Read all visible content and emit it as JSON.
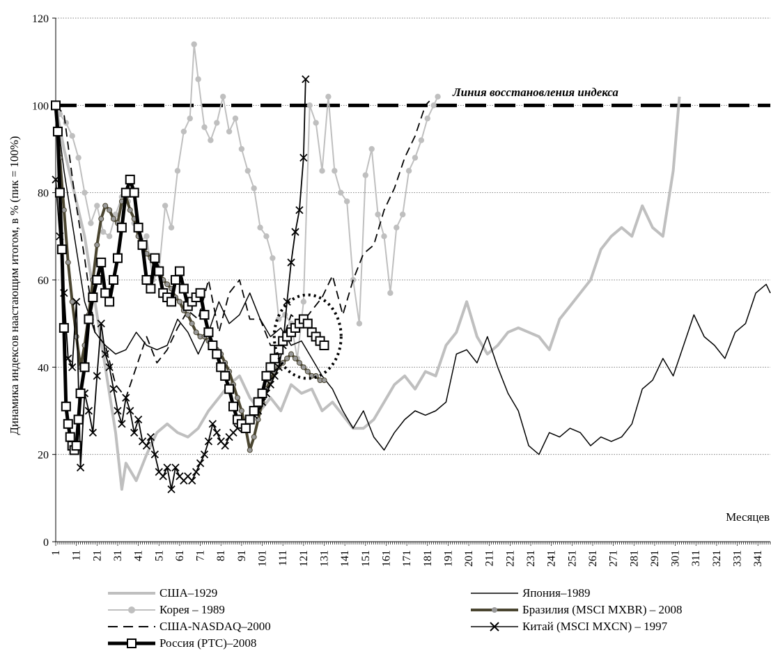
{
  "chart_data": {
    "type": "line",
    "title": "",
    "xlabel": "Месяцев",
    "ylabel": "Динамика  индексов наастающим итогом, в % (пик = 100%)",
    "ylim": [
      0,
      120
    ],
    "xlim": [
      1,
      347
    ],
    "yticks": [
      0,
      20,
      40,
      60,
      80,
      100,
      120
    ],
    "xticks": [
      1,
      11,
      21,
      31,
      41,
      51,
      61,
      71,
      81,
      91,
      101,
      111,
      121,
      131,
      141,
      151,
      161,
      171,
      181,
      191,
      201,
      211,
      221,
      231,
      241,
      251,
      261,
      271,
      281,
      291,
      301,
      311,
      321,
      331,
      341
    ],
    "grid": "horizontal dotted",
    "annotation": "Линия восстановления индекса",
    "recovery_line": 100,
    "legend_position": "bottom",
    "series": [
      {
        "name": "США–1929",
        "color": "#bfbfbf",
        "style": "thick",
        "x": [
          1,
          5,
          10,
          15,
          20,
          25,
          30,
          33,
          35,
          40,
          45,
          50,
          55,
          60,
          65,
          70,
          75,
          80,
          85,
          90,
          95,
          100,
          105,
          110,
          115,
          120,
          125,
          130,
          135,
          140,
          145,
          150,
          155,
          160,
          165,
          170,
          175,
          180,
          185,
          190,
          195,
          200,
          205,
          210,
          215,
          220,
          225,
          230,
          235,
          240,
          245,
          250,
          255,
          260,
          265,
          270,
          275,
          280,
          285,
          290,
          295,
          300,
          303
        ],
        "values": [
          100,
          90,
          80,
          70,
          55,
          40,
          25,
          12,
          18,
          14,
          20,
          25,
          27,
          25,
          24,
          26,
          30,
          33,
          36,
          38,
          33,
          30,
          33,
          30,
          36,
          34,
          35,
          30,
          32,
          29,
          26,
          26,
          28,
          32,
          36,
          38,
          35,
          39,
          38,
          45,
          48,
          55,
          47,
          43,
          45,
          48,
          49,
          48,
          47,
          44,
          51,
          54,
          57,
          60,
          67,
          70,
          72,
          70,
          77,
          72,
          70,
          85,
          102
        ]
      },
      {
        "name": "Япония–1989",
        "color": "#000000",
        "style": "thin",
        "x": [
          1,
          5,
          10,
          15,
          20,
          25,
          30,
          35,
          40,
          45,
          50,
          55,
          60,
          65,
          70,
          75,
          80,
          85,
          90,
          95,
          100,
          105,
          110,
          115,
          120,
          125,
          130,
          135,
          140,
          145,
          150,
          155,
          160,
          165,
          170,
          175,
          180,
          185,
          190,
          195,
          200,
          205,
          210,
          215,
          220,
          225,
          230,
          235,
          240,
          245,
          250,
          255,
          260,
          265,
          270,
          275,
          280,
          285,
          290,
          295,
          300,
          305,
          310,
          315,
          320,
          325,
          330,
          335,
          340,
          345,
          347
        ],
        "values": [
          100,
          85,
          70,
          55,
          48,
          45,
          43,
          44,
          48,
          45,
          44,
          45,
          51,
          48,
          43,
          48,
          55,
          50,
          52,
          57,
          51,
          47,
          49,
          45,
          46,
          42,
          38,
          35,
          30,
          26,
          30,
          24,
          21,
          25,
          28,
          30,
          29,
          30,
          32,
          43,
          44,
          41,
          47,
          40,
          34,
          30,
          22,
          20,
          25,
          24,
          26,
          25,
          22,
          24,
          23,
          24,
          27,
          35,
          37,
          42,
          38,
          45,
          52,
          47,
          45,
          42,
          48,
          50,
          57,
          59,
          57
        ]
      },
      {
        "name": "Корея – 1989",
        "color": "#bfbfbf",
        "style": "markers-circle",
        "x": [
          1,
          3,
          6,
          9,
          12,
          15,
          18,
          21,
          24,
          27,
          30,
          33,
          36,
          39,
          42,
          45,
          48,
          51,
          54,
          57,
          60,
          63,
          66,
          68,
          70,
          73,
          76,
          79,
          82,
          85,
          88,
          91,
          94,
          97,
          100,
          103,
          106,
          109,
          112,
          115,
          118,
          121,
          124,
          127,
          130,
          133,
          136,
          139,
          142,
          145,
          148,
          151,
          154,
          157,
          160,
          163,
          166,
          169,
          172,
          175,
          178,
          181,
          184,
          186
        ],
        "values": [
          100,
          98,
          96,
          93,
          88,
          80,
          73,
          77,
          71,
          70,
          75,
          79,
          78,
          73,
          69,
          70,
          60,
          62,
          77,
          72,
          85,
          94,
          97,
          114,
          106,
          95,
          92,
          96,
          102,
          94,
          97,
          90,
          85,
          81,
          72,
          70,
          65,
          51,
          52,
          50,
          42,
          55,
          100,
          96,
          85,
          102,
          85,
          80,
          78,
          60,
          50,
          84,
          90,
          75,
          70,
          57,
          72,
          75,
          85,
          88,
          92,
          97,
          100,
          102
        ]
      },
      {
        "name": "Бразилия (MSCI MXBR) – 2008",
        "color": "#4a4530",
        "style": "markers-circle-thick",
        "x": [
          1,
          3,
          5,
          7,
          9,
          11,
          13,
          15,
          17,
          19,
          21,
          23,
          25,
          27,
          29,
          31,
          33,
          35,
          37,
          39,
          41,
          43,
          45,
          47,
          49,
          51,
          53,
          55,
          57,
          59,
          61,
          63,
          65,
          67,
          69,
          71,
          73,
          75,
          77,
          79,
          81,
          83,
          85,
          87,
          89,
          91,
          93,
          95,
          97,
          99,
          101,
          103,
          105,
          107,
          109,
          111,
          113,
          115,
          117,
          119,
          121,
          123,
          125,
          127,
          129,
          131
        ],
        "values": [
          100,
          88,
          76,
          64,
          55,
          47,
          40,
          45,
          52,
          60,
          68,
          74,
          77,
          76,
          74,
          73,
          78,
          79,
          76,
          74,
          70,
          68,
          66,
          65,
          63,
          62,
          60,
          59,
          58,
          56,
          55,
          53,
          52,
          50,
          48,
          47,
          47,
          46,
          45,
          44,
          43,
          41,
          39,
          36,
          33,
          30,
          26,
          21,
          24,
          28,
          32,
          35,
          37,
          39,
          40,
          41,
          42,
          43,
          42,
          41,
          40,
          39,
          38,
          38,
          37,
          37
        ]
      },
      {
        "name": "США-NASDAQ–2000",
        "color": "#000000",
        "style": "dashed",
        "x": [
          1,
          5,
          10,
          15,
          20,
          25,
          30,
          35,
          40,
          45,
          50,
          55,
          60,
          65,
          70,
          75,
          80,
          85,
          90,
          95,
          100,
          105,
          110,
          115,
          120,
          125,
          130,
          135,
          140,
          145,
          150,
          155,
          160,
          165,
          170,
          175,
          180,
          182
        ],
        "values": [
          100,
          98,
          80,
          65,
          48,
          45,
          36,
          33,
          40,
          47,
          41,
          44,
          49,
          53,
          51,
          60,
          48,
          57,
          60,
          51,
          51,
          45,
          45,
          52,
          50,
          53,
          56,
          61,
          52,
          60,
          66,
          68,
          76,
          81,
          88,
          93,
          100,
          101
        ]
      },
      {
        "name": "Китай (MSCI MXCN) – 1997",
        "color": "#000000",
        "style": "markers-x",
        "x": [
          1,
          3,
          5,
          7,
          9,
          11,
          13,
          15,
          17,
          19,
          21,
          23,
          25,
          27,
          29,
          31,
          33,
          35,
          37,
          39,
          41,
          43,
          45,
          47,
          49,
          51,
          53,
          55,
          57,
          59,
          61,
          63,
          65,
          67,
          69,
          71,
          73,
          75,
          77,
          79,
          81,
          83,
          85,
          87,
          89,
          91,
          93,
          95,
          97,
          99,
          101,
          103,
          105,
          107,
          109,
          111,
          113,
          115,
          117,
          119,
          121,
          122
        ],
        "values": [
          83,
          70,
          57,
          42,
          40,
          55,
          17,
          34,
          30,
          25,
          38,
          50,
          43,
          40,
          35,
          30,
          27,
          33,
          30,
          25,
          28,
          23,
          22,
          24,
          20,
          16,
          15,
          17,
          12,
          17,
          15,
          14,
          15,
          14,
          16,
          18,
          20,
          23,
          27,
          25,
          23,
          22,
          24,
          25,
          26,
          27,
          27,
          28,
          29,
          30,
          32,
          34,
          36,
          38,
          40,
          45,
          55,
          64,
          71,
          76,
          88,
          106
        ]
      },
      {
        "name": "Россия (РТС)–2008",
        "color": "#000000",
        "style": "markers-square-thick",
        "x": [
          1,
          2,
          3,
          4,
          5,
          6,
          7,
          8,
          9,
          10,
          11,
          12,
          13,
          15,
          17,
          19,
          21,
          23,
          25,
          27,
          29,
          31,
          33,
          35,
          37,
          39,
          41,
          43,
          45,
          47,
          49,
          51,
          53,
          55,
          57,
          59,
          61,
          63,
          65,
          67,
          69,
          71,
          73,
          75,
          77,
          79,
          81,
          83,
          85,
          87,
          89,
          91,
          93,
          95,
          97,
          99,
          101,
          103,
          105,
          107,
          109,
          111,
          113,
          115,
          117,
          119,
          121,
          123,
          125,
          127,
          129,
          131
        ],
        "values": [
          100,
          94,
          80,
          67,
          49,
          31,
          27,
          24,
          22,
          21,
          22,
          28,
          34,
          40,
          51,
          56,
          60,
          64,
          57,
          55,
          60,
          65,
          72,
          80,
          83,
          80,
          72,
          68,
          60,
          58,
          65,
          62,
          57,
          56,
          55,
          60,
          62,
          58,
          54,
          55,
          56,
          57,
          52,
          48,
          45,
          43,
          40,
          38,
          35,
          31,
          28,
          27,
          26,
          28,
          30,
          32,
          34,
          38,
          40,
          42,
          44,
          46,
          47,
          48,
          49,
          50,
          51,
          50,
          48,
          47,
          46,
          45
        ]
      }
    ]
  }
}
